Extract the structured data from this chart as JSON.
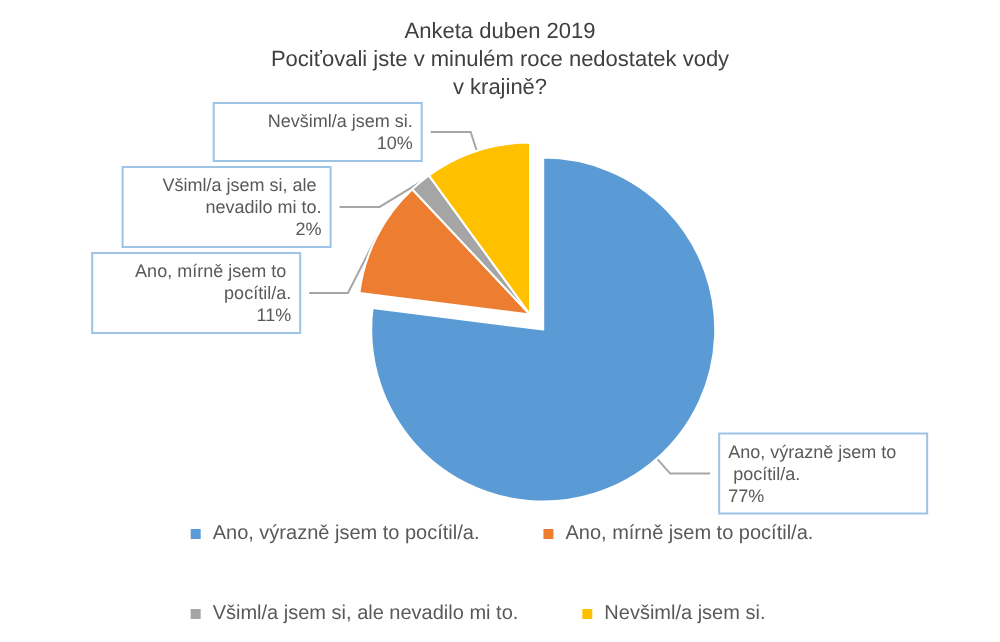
{
  "chart_data": {
    "type": "pie",
    "title": "Anketa duben 2019\nPociťovali jste v minulém roce nedostatek vody\nv krajině?",
    "categories": [
      "Ano, výrazně jsem to pocítil/a.",
      "Ano, mírně jsem to pocítil/a.",
      "Všiml/a jsem si, ale nevadilo mi to.",
      "Nevšiml/a jsem si."
    ],
    "values": [
      77,
      11,
      2,
      10
    ],
    "colors": [
      "#5b9bd5",
      "#ed7d31",
      "#a5a5a5",
      "#ffc000"
    ],
    "value_labels": [
      "77%",
      "11%",
      "2%",
      "10%"
    ],
    "legend": "bottom"
  }
}
